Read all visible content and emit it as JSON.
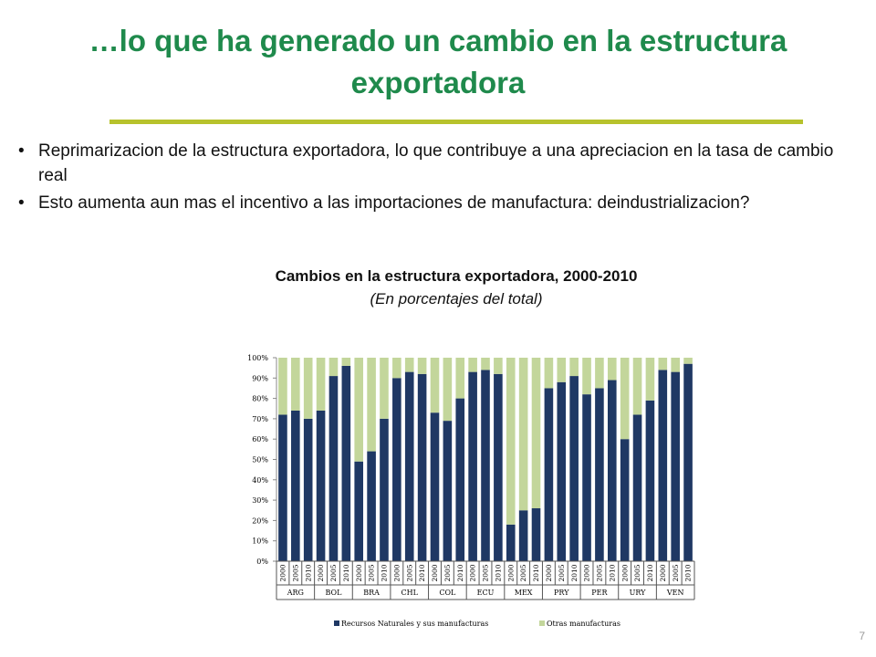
{
  "slide": {
    "title": "…lo que ha generado un cambio en la estructura exportadora",
    "bullets": [
      "Reprimarizacion de la estructura exportadora, lo que contribuye a una apreciacion en la tasa de cambio real",
      "Esto aumenta aun mas el incentivo a las importaciones de manufactura: deindustrializacion?"
    ],
    "page_number": "7"
  },
  "colors": {
    "title": "#1f8a4c",
    "rule": "#b7c22c",
    "series1": "#1f3864",
    "series2": "#c3d69b"
  },
  "chart_data": {
    "type": "bar",
    "stacked": true,
    "title": "Cambios en la estructura exportadora, 2000-2010",
    "subtitle": "(En porcentajes del total)",
    "ylim": [
      0,
      100
    ],
    "y_ticks": [
      "0%",
      "10%",
      "20%",
      "30%",
      "40%",
      "50%",
      "60%",
      "70%",
      "80%",
      "90%",
      "100%"
    ],
    "groups": [
      "ARG",
      "BOL",
      "BRA",
      "CHL",
      "COL",
      "ECU",
      "MEX",
      "PRY",
      "PER",
      "URY",
      "VEN"
    ],
    "years": [
      "2000",
      "2005",
      "2010"
    ],
    "series": [
      {
        "name": "Recursos Naturales y sus manufacturas",
        "values": [
          72,
          74,
          70,
          74,
          91,
          96,
          49,
          54,
          70,
          90,
          93,
          92,
          73,
          69,
          80,
          93,
          94,
          92,
          18,
          25,
          26,
          85,
          88,
          91,
          82,
          85,
          89,
          60,
          72,
          79,
          94,
          93,
          97
        ]
      },
      {
        "name": "Otras manufacturas",
        "values": [
          28,
          26,
          30,
          26,
          9,
          4,
          51,
          46,
          30,
          10,
          7,
          8,
          27,
          31,
          20,
          7,
          6,
          8,
          82,
          75,
          74,
          15,
          12,
          9,
          18,
          15,
          11,
          40,
          28,
          21,
          6,
          7,
          3
        ]
      }
    ],
    "grid": false,
    "legend_position": "bottom"
  }
}
